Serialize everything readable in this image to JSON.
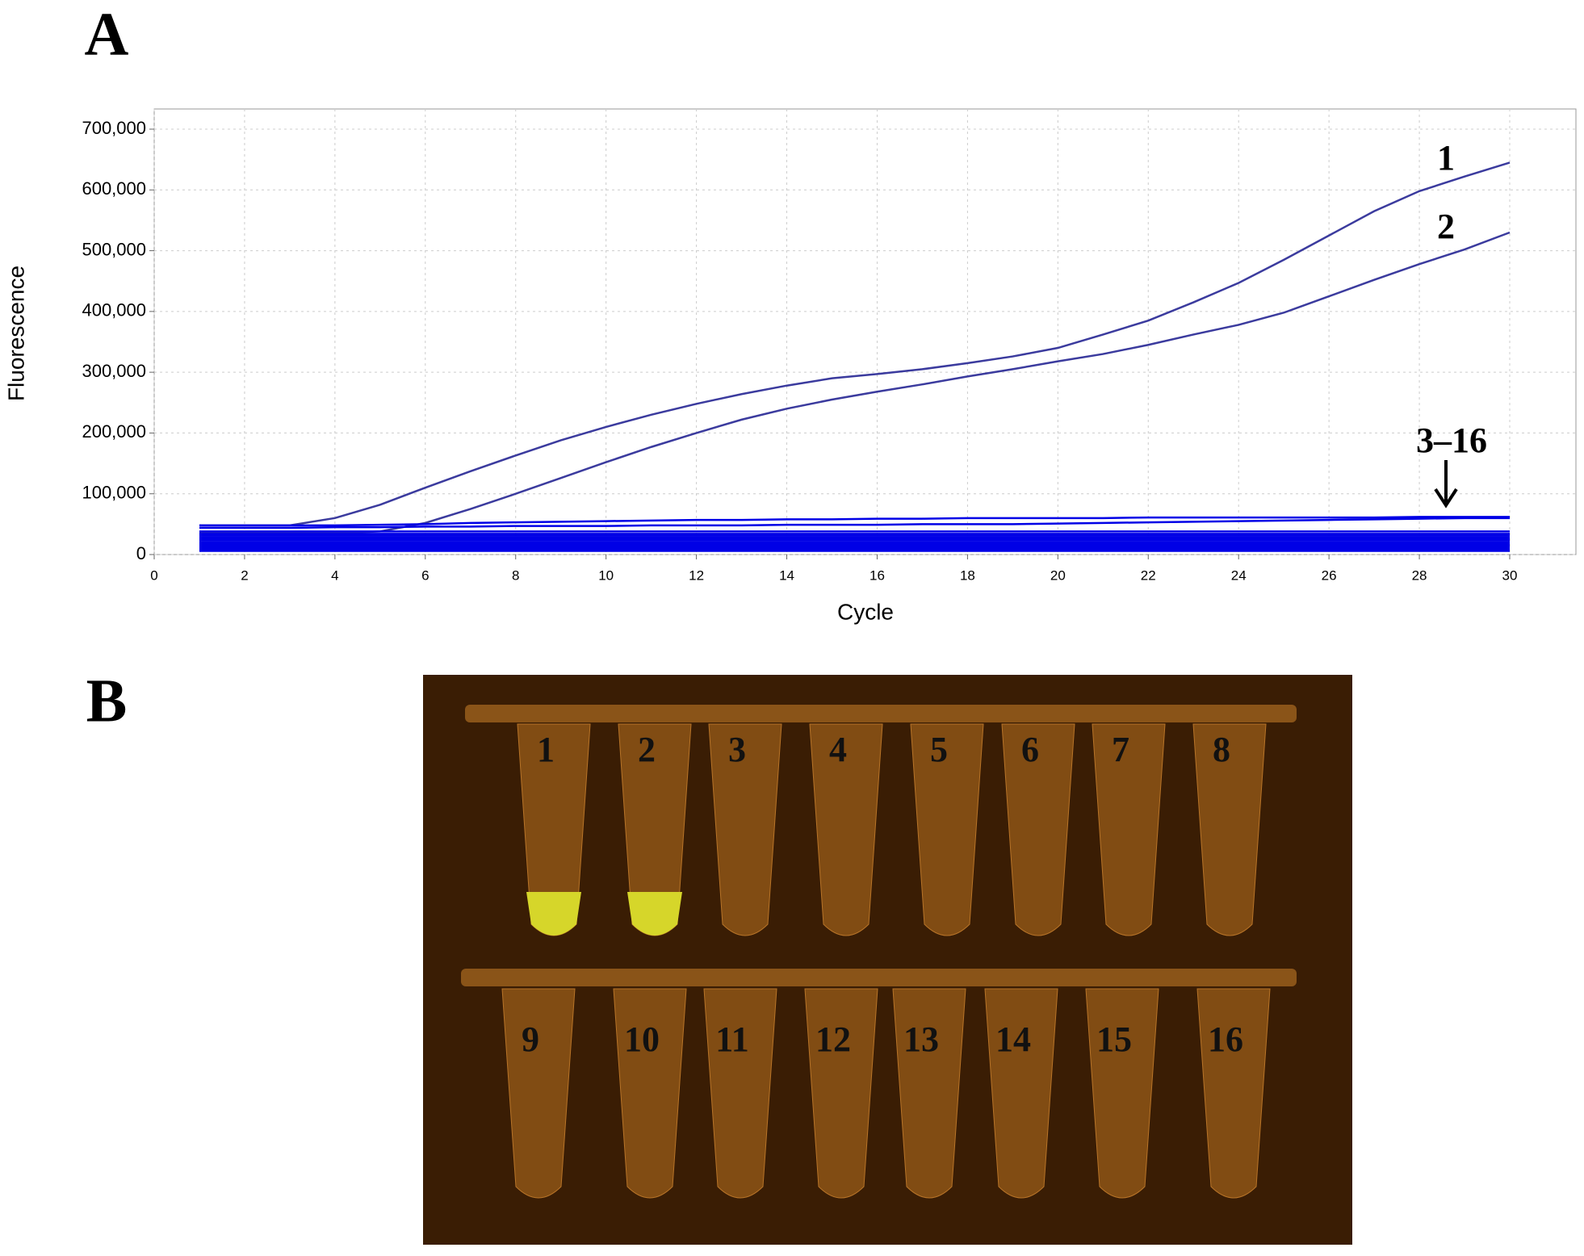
{
  "panel_labels": [
    "A",
    "B"
  ],
  "chart_data": {
    "type": "line",
    "x_label": "Cycle",
    "y_label": "Fluorescence",
    "x": [
      1,
      2,
      3,
      4,
      5,
      6,
      7,
      8,
      9,
      10,
      11,
      12,
      13,
      14,
      15,
      16,
      17,
      18,
      19,
      20,
      21,
      22,
      23,
      24,
      25,
      26,
      27,
      28,
      29,
      30
    ],
    "xlim": [
      0,
      30
    ],
    "xticks": [
      0,
      2,
      4,
      6,
      8,
      10,
      12,
      14,
      16,
      18,
      20,
      22,
      24,
      26,
      28,
      30
    ],
    "ylim": [
      0,
      700000
    ],
    "yticks": [
      0,
      {
        "value": 100000,
        "label": "100,000"
      },
      {
        "value": 200000,
        "label": "200,000"
      },
      {
        "value": 300000,
        "label": "300,000"
      },
      {
        "value": 400000,
        "label": "400,000"
      },
      {
        "value": 500000,
        "label": "500,000"
      },
      {
        "value": 600000,
        "label": "600,000"
      },
      {
        "value": 700000,
        "label": "700,000"
      }
    ],
    "grid": true,
    "series": [
      {
        "name": "1",
        "color": "#3b3b9e",
        "values": [
          48000,
          48000,
          48000,
          60000,
          82000,
          110000,
          137000,
          163000,
          188000,
          210000,
          230000,
          248000,
          264000,
          278000,
          290000,
          297000,
          305000,
          315000,
          326000,
          340000,
          362000,
          385000,
          415000,
          447000,
          485000,
          525000,
          565000,
          598000,
          622000,
          645000
        ]
      },
      {
        "name": "2",
        "color": "#3b3b9e",
        "values": [
          35000,
          35000,
          35000,
          35000,
          38000,
          52000,
          75000,
          100000,
          126000,
          152000,
          177000,
          200000,
          222000,
          240000,
          255000,
          268000,
          280000,
          293000,
          305000,
          318000,
          330000,
          345000,
          362000,
          378000,
          398000,
          425000,
          452000,
          478000,
          502000,
          530000
        ]
      },
      {
        "color": "#0000e6",
        "values": [
          48000,
          48000,
          48000,
          48000,
          49000,
          50000,
          52000,
          53000,
          54000,
          55000,
          56000,
          57000,
          57000,
          58000,
          58000,
          59000,
          59000,
          60000,
          60000,
          60000,
          60000,
          61000,
          61000,
          61000,
          61000,
          61000,
          61000,
          62000,
          62000,
          62000
        ]
      },
      {
        "color": "#0000e6",
        "values": [
          44000,
          44000,
          44000,
          45000,
          45000,
          46000,
          46000,
          47000,
          47000,
          47000,
          48000,
          48000,
          48000,
          49000,
          49000,
          49000,
          50000,
          50000,
          50000,
          51000,
          52000,
          53000,
          54000,
          55000,
          56000,
          57000,
          58000,
          59000,
          60000,
          60000
        ]
      },
      {
        "color": "#0000e6",
        "values": [
          38000,
          38000,
          38000,
          38000,
          38000,
          38000,
          38000,
          38000,
          38000,
          38000,
          38000,
          38000,
          38000,
          38000,
          38000,
          38000,
          38000,
          38000,
          38000,
          38000,
          38000,
          38000,
          38000,
          38000,
          38000,
          38000,
          38000,
          38000,
          38000,
          38000
        ]
      },
      {
        "color": "#0000e6",
        "values": [
          34000,
          34000,
          34000,
          34000,
          34000,
          34000,
          34000,
          34000,
          34000,
          34000,
          34000,
          34000,
          34000,
          34000,
          34000,
          34000,
          34000,
          34000,
          34000,
          34000,
          34000,
          34000,
          34000,
          34000,
          34000,
          34000,
          34000,
          34000,
          34000,
          34000
        ]
      },
      {
        "color": "#0000e6",
        "values": [
          31000,
          31000,
          31000,
          31000,
          31000,
          31000,
          31000,
          31000,
          31000,
          31000,
          31000,
          31000,
          31000,
          31000,
          31000,
          31000,
          31000,
          31000,
          31000,
          31000,
          31000,
          31000,
          31000,
          31000,
          31000,
          31000,
          31000,
          31000,
          31000,
          31000
        ]
      },
      {
        "color": "#0000e6",
        "values": [
          28000,
          28000,
          28000,
          28000,
          28000,
          28000,
          28000,
          28000,
          28000,
          28000,
          28000,
          28000,
          28000,
          28000,
          28000,
          28000,
          28000,
          28000,
          28000,
          28000,
          28000,
          28000,
          28000,
          28000,
          28000,
          28000,
          28000,
          28000,
          28000,
          28000
        ]
      },
      {
        "color": "#0000e6",
        "values": [
          25000,
          25000,
          25000,
          25000,
          25000,
          25000,
          25000,
          25000,
          25000,
          25000,
          25000,
          25000,
          25000,
          25000,
          25000,
          25000,
          25000,
          25000,
          25000,
          25000,
          25000,
          25000,
          25000,
          25000,
          25000,
          25000,
          25000,
          25000,
          25000,
          25000
        ]
      },
      {
        "color": "#0000e6",
        "values": [
          23000,
          23000,
          23000,
          23000,
          23000,
          23000,
          23000,
          23000,
          23000,
          23000,
          23000,
          23000,
          23000,
          23000,
          23000,
          23000,
          23000,
          23000,
          23000,
          23000,
          23000,
          23000,
          23000,
          23000,
          23000,
          23000,
          23000,
          23000,
          23000,
          23000
        ]
      },
      {
        "color": "#0000e6",
        "values": [
          20000,
          20000,
          20000,
          20000,
          20000,
          20000,
          20000,
          20000,
          20000,
          20000,
          20000,
          20000,
          20000,
          20000,
          20000,
          20000,
          20000,
          20000,
          20000,
          20000,
          20000,
          20000,
          20000,
          20000,
          20000,
          20000,
          20000,
          20000,
          20000,
          20000
        ]
      },
      {
        "color": "#0000e6",
        "values": [
          17000,
          17000,
          17000,
          17000,
          17000,
          17000,
          17000,
          17000,
          17000,
          17000,
          17000,
          17000,
          17000,
          17000,
          17000,
          17000,
          17000,
          17000,
          17000,
          17000,
          17000,
          17000,
          17000,
          17000,
          17000,
          17000,
          17000,
          17000,
          17000,
          17000
        ]
      },
      {
        "color": "#0000e6",
        "values": [
          14000,
          14000,
          14000,
          14000,
          14000,
          14000,
          14000,
          14000,
          14000,
          14000,
          14000,
          14000,
          14000,
          14000,
          14000,
          14000,
          14000,
          14000,
          14000,
          14000,
          14000,
          14000,
          14000,
          14000,
          14000,
          14000,
          14000,
          14000,
          14000,
          14000
        ]
      },
      {
        "color": "#0000e6",
        "values": [
          11000,
          11000,
          11000,
          11000,
          11000,
          11000,
          11000,
          11000,
          11000,
          11000,
          11000,
          11000,
          11000,
          11000,
          11000,
          11000,
          11000,
          11000,
          11000,
          11000,
          11000,
          11000,
          11000,
          11000,
          11000,
          11000,
          11000,
          11000,
          11000,
          11000
        ]
      },
      {
        "color": "#0000e6",
        "values": [
          8000,
          8000,
          8000,
          8000,
          8000,
          8000,
          8000,
          8000,
          8000,
          8000,
          8000,
          8000,
          8000,
          8000,
          8000,
          8000,
          8000,
          8000,
          8000,
          8000,
          8000,
          8000,
          8000,
          8000,
          8000,
          8000,
          8000,
          8000,
          8000,
          8000
        ]
      },
      {
        "color": "#0000e6",
        "values": [
          6000,
          6000,
          6000,
          6000,
          6000,
          6000,
          6000,
          6000,
          6000,
          6000,
          6000,
          6000,
          6000,
          6000,
          6000,
          6000,
          6000,
          6000,
          6000,
          6000,
          6000,
          6000,
          6000,
          6000,
          6000,
          6000,
          6000,
          6000,
          6000,
          6000
        ]
      }
    ],
    "annotations": [
      {
        "text": "3–16"
      }
    ]
  },
  "photo": {
    "tube_labels": [
      "1",
      "2",
      "3",
      "4",
      "5",
      "6",
      "7",
      "8",
      "9",
      "10",
      "11",
      "12",
      "13",
      "14",
      "15",
      "16"
    ]
  }
}
